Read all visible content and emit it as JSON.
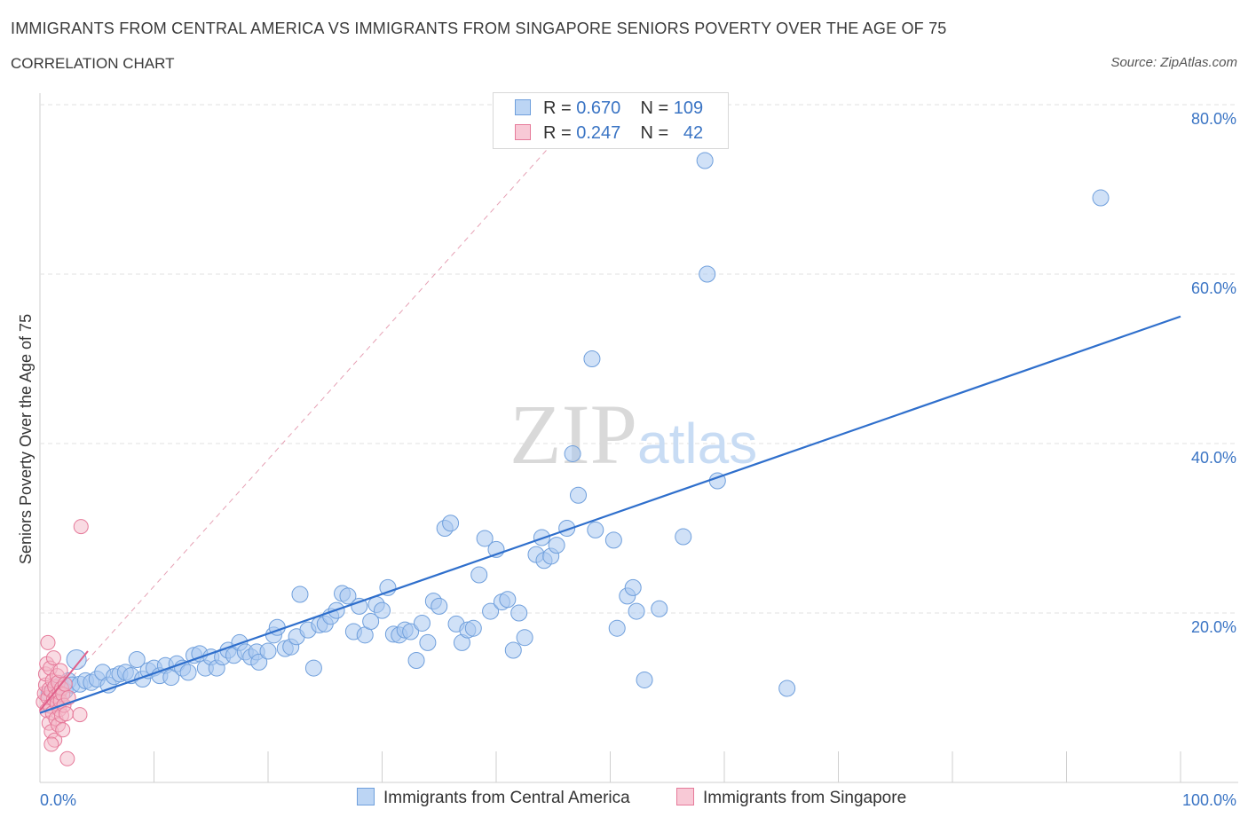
{
  "title": "IMMIGRANTS FROM CENTRAL AMERICA VS IMMIGRANTS FROM SINGAPORE SENIORS POVERTY OVER THE AGE OF 75",
  "subtitle": "CORRELATION CHART",
  "source": "Source: ZipAtlas.com",
  "watermark": {
    "zip": "ZIP",
    "atlas": "atlas"
  },
  "legend": {
    "rows": [
      {
        "r_label": "R =",
        "r_value": "0.670",
        "n_label": "N =",
        "n_value": "109"
      },
      {
        "r_label": "R =",
        "r_value": "0.247",
        "n_label": "N =",
        "n_value": "42"
      }
    ]
  },
  "bottom_legend": {
    "series1": "Immigrants from Central America",
    "series2": "Immigrants from Singapore"
  },
  "colors": {
    "blue_fill": "#a9c8f0",
    "blue_stroke": "#6f9fdc",
    "blue_line": "#2f6fcc",
    "pink_fill": "#f4b8c8",
    "pink_stroke": "#e67a9a",
    "pink_line": "#e0608a",
    "grid": "#e0e0e0",
    "label": "#3a74c4"
  },
  "chart_data": {
    "type": "scatter",
    "title": "IMMIGRANTS FROM CENTRAL AMERICA VS IMMIGRANTS FROM SINGAPORE SENIORS POVERTY OVER THE AGE OF 75",
    "xlabel": "",
    "ylabel": "Seniors Poverty Over the Age of 75",
    "xlim": [
      0,
      100
    ],
    "ylim": [
      0,
      80
    ],
    "x_tick_labels": [
      "0.0%",
      "100.0%"
    ],
    "y_ticks": [
      20,
      40,
      60,
      80
    ],
    "y_tick_labels": [
      "20.0%",
      "40.0%",
      "60.0%",
      "80.0%"
    ],
    "grid": true,
    "series": [
      {
        "name": "Immigrants from Central America",
        "color": "#6f9fdc",
        "trend": {
          "x": [
            0,
            100
          ],
          "y": [
            8.2,
            55
          ]
        },
        "points": [
          [
            0.8,
            10.5
          ],
          [
            1.2,
            11
          ],
          [
            1.5,
            10
          ],
          [
            1.8,
            11.5
          ],
          [
            2.2,
            10.8
          ],
          [
            2.5,
            12
          ],
          [
            2.8,
            11.5
          ],
          [
            3.2,
            14.5
          ],
          [
            3.5,
            11.6
          ],
          [
            4,
            12
          ],
          [
            4.5,
            11.8
          ],
          [
            5,
            12.2
          ],
          [
            5.5,
            13
          ],
          [
            6,
            11.5
          ],
          [
            6.5,
            12.5
          ],
          [
            7,
            12.8
          ],
          [
            7.5,
            13
          ],
          [
            8,
            12.6
          ],
          [
            8.5,
            14.5
          ],
          [
            9,
            12.2
          ],
          [
            9.5,
            13.2
          ],
          [
            10,
            13.5
          ],
          [
            10.5,
            12.6
          ],
          [
            11,
            13.8
          ],
          [
            11.5,
            12.4
          ],
          [
            12,
            14
          ],
          [
            12.5,
            13.5
          ],
          [
            13,
            13
          ],
          [
            13.5,
            15
          ],
          [
            14,
            15.2
          ],
          [
            14.5,
            13.5
          ],
          [
            15,
            14.8
          ],
          [
            15.5,
            13.5
          ],
          [
            16,
            14.8
          ],
          [
            16.5,
            15.6
          ],
          [
            17,
            15
          ],
          [
            17.5,
            16.5
          ],
          [
            18,
            15.4
          ],
          [
            18.5,
            14.8
          ],
          [
            19,
            15.4
          ],
          [
            19.2,
            14.2
          ],
          [
            20,
            15.5
          ],
          [
            20.5,
            17.4
          ],
          [
            20.8,
            18.3
          ],
          [
            21.5,
            15.8
          ],
          [
            22,
            16
          ],
          [
            22.5,
            17.2
          ],
          [
            22.8,
            22.2
          ],
          [
            23.5,
            18
          ],
          [
            24,
            13.5
          ],
          [
            24.5,
            18.6
          ],
          [
            25,
            18.7
          ],
          [
            25.5,
            19.6
          ],
          [
            26,
            20.3
          ],
          [
            26.5,
            22.3
          ],
          [
            27,
            22
          ],
          [
            27.5,
            17.8
          ],
          [
            28,
            20.8
          ],
          [
            28.5,
            17.4
          ],
          [
            29,
            19
          ],
          [
            29.5,
            21
          ],
          [
            30,
            20.3
          ],
          [
            30.5,
            23
          ],
          [
            31,
            17.5
          ],
          [
            31.5,
            17.4
          ],
          [
            32,
            18
          ],
          [
            32.5,
            17.8
          ],
          [
            33,
            14.4
          ],
          [
            33.5,
            18.8
          ],
          [
            34,
            16.5
          ],
          [
            34.5,
            21.4
          ],
          [
            35,
            20.8
          ],
          [
            35.5,
            30
          ],
          [
            36,
            30.6
          ],
          [
            36.5,
            18.7
          ],
          [
            37,
            16.5
          ],
          [
            37.5,
            18
          ],
          [
            38,
            18.2
          ],
          [
            38.5,
            24.5
          ],
          [
            39,
            28.8
          ],
          [
            39.5,
            20.2
          ],
          [
            40,
            27.5
          ],
          [
            40.5,
            21.3
          ],
          [
            41,
            21.6
          ],
          [
            41.5,
            15.6
          ],
          [
            42,
            20
          ],
          [
            42.5,
            17.1
          ],
          [
            43.5,
            26.9
          ],
          [
            44,
            28.9
          ],
          [
            44.2,
            26.2
          ],
          [
            44.8,
            26.7
          ],
          [
            45.3,
            28
          ],
          [
            46.2,
            30
          ],
          [
            46.7,
            38.8
          ],
          [
            47.2,
            33.9
          ],
          [
            48.4,
            50
          ],
          [
            48.7,
            29.8
          ],
          [
            50.3,
            28.6
          ],
          [
            50.6,
            18.2
          ],
          [
            51.5,
            22
          ],
          [
            52,
            23
          ],
          [
            52.3,
            20.2
          ],
          [
            53,
            12.1
          ],
          [
            54.3,
            20.5
          ],
          [
            56.4,
            29
          ],
          [
            58.3,
            73.4
          ],
          [
            58.5,
            60
          ],
          [
            59.4,
            35.6
          ],
          [
            65.5,
            11.1
          ],
          [
            93,
            69
          ]
        ]
      },
      {
        "name": "Immigrants from Singapore",
        "color": "#e67a9a",
        "trend": {
          "x": [
            0,
            4.2
          ],
          "y": [
            8.5,
            15.5
          ]
        },
        "points": [
          [
            0.3,
            9.5
          ],
          [
            0.4,
            10.5
          ],
          [
            0.5,
            11.5
          ],
          [
            0.5,
            12.8
          ],
          [
            0.6,
            8.5
          ],
          [
            0.6,
            14
          ],
          [
            0.7,
            10
          ],
          [
            0.7,
            16.5
          ],
          [
            0.8,
            7
          ],
          [
            0.8,
            11
          ],
          [
            0.9,
            13.5
          ],
          [
            0.9,
            9
          ],
          [
            1.0,
            10.8
          ],
          [
            1.0,
            6
          ],
          [
            1.1,
            12
          ],
          [
            1.1,
            8.2
          ],
          [
            1.2,
            14.7
          ],
          [
            1.2,
            9.8
          ],
          [
            1.3,
            11.3
          ],
          [
            1.3,
            5
          ],
          [
            1.4,
            10.2
          ],
          [
            1.4,
            7.5
          ],
          [
            1.5,
            12.6
          ],
          [
            1.5,
            9.3
          ],
          [
            1.6,
            11.8
          ],
          [
            1.6,
            6.8
          ],
          [
            1.7,
            10.6
          ],
          [
            1.7,
            8.6
          ],
          [
            1.8,
            13.2
          ],
          [
            1.8,
            9.6
          ],
          [
            1.9,
            11.1
          ],
          [
            1.9,
            7.9
          ],
          [
            2.0,
            10.4
          ],
          [
            2.0,
            6.2
          ],
          [
            2.1,
            9.1
          ],
          [
            2.2,
            11.6
          ],
          [
            2.3,
            8.1
          ],
          [
            2.4,
            2.8
          ],
          [
            2.5,
            10
          ],
          [
            3.5,
            8
          ],
          [
            3.6,
            30.2
          ],
          [
            1.0,
            4.5
          ]
        ]
      }
    ],
    "reference_line": {
      "x": [
        0,
        48
      ],
      "y": [
        8.2,
        80
      ],
      "style": "dashed"
    }
  }
}
